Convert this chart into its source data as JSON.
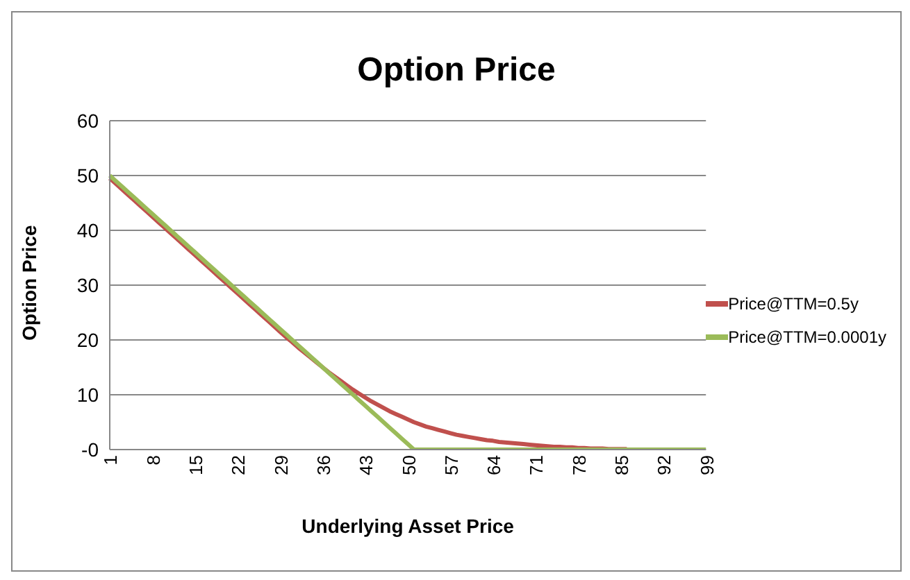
{
  "chart_data": {
    "type": "line",
    "title": "Option Price",
    "xlabel": "Underlying Asset Price",
    "ylabel": "Option Price",
    "categories": [
      "1",
      null,
      null,
      null,
      null,
      null,
      null,
      "8",
      null,
      null,
      null,
      null,
      null,
      null,
      "15",
      null,
      null,
      null,
      null,
      null,
      null,
      "22",
      null,
      null,
      null,
      null,
      null,
      null,
      "29",
      null,
      null,
      null,
      null,
      null,
      null,
      "36",
      null,
      null,
      null,
      null,
      null,
      null,
      "43",
      null,
      null,
      null,
      null,
      null,
      null,
      "50",
      null,
      null,
      null,
      null,
      null,
      null,
      "57",
      null,
      null,
      null,
      null,
      null,
      null,
      "64",
      null,
      null,
      null,
      null,
      null,
      null,
      "71",
      null,
      null,
      null,
      null,
      null,
      null,
      "78",
      null,
      null,
      null,
      null,
      null,
      null,
      "85",
      null,
      null,
      null,
      null,
      null,
      null,
      "92",
      null,
      null,
      null,
      null,
      null,
      null,
      "99"
    ],
    "series": [
      {
        "name": "Price@TTM=0.5y",
        "color": "#c0504d",
        "values": [
          49.5,
          48.5,
          47.5,
          46.5,
          45.5,
          44.5,
          43.5,
          42.5,
          41.5,
          40.5,
          39.5,
          38.5,
          37.5,
          36.5,
          35.5,
          34.5,
          33.5,
          32.5,
          31.5,
          30.5,
          29.5,
          28.5,
          27.5,
          26.5,
          25.5,
          24.5,
          23.5,
          22.5,
          21.5,
          20.5,
          19.6,
          18.6,
          17.7,
          16.8,
          15.9,
          15.0,
          14.1,
          13.3,
          12.5,
          11.7,
          10.9,
          10.2,
          9.5,
          8.8,
          8.2,
          7.6,
          7.0,
          6.5,
          6.0,
          5.5,
          5.0,
          4.6,
          4.2,
          3.9,
          3.6,
          3.3,
          3.0,
          2.7,
          2.5,
          2.3,
          2.1,
          1.9,
          1.7,
          1.6,
          1.4,
          1.3,
          1.2,
          1.1,
          1.0,
          0.9,
          0.8,
          0.7,
          0.6,
          0.5,
          0.5,
          0.4,
          0.4,
          0.3,
          0.3,
          0.2,
          0.2,
          0.2,
          0.1,
          0.1,
          0.1,
          0.1,
          null,
          null,
          null,
          null,
          null,
          null,
          null,
          null,
          null,
          null,
          null,
          null,
          null
        ]
      },
      {
        "name": "Price@TTM=0.0001y",
        "color": "#9bbb59",
        "values": [
          50,
          49,
          48,
          47,
          46,
          45,
          44,
          43,
          42,
          41,
          40,
          39,
          38,
          37,
          36,
          35,
          34,
          33,
          32,
          31,
          30,
          29,
          28,
          27,
          26,
          25,
          24,
          23,
          22,
          21,
          20,
          19,
          18,
          17,
          16,
          15,
          14,
          13,
          12,
          11,
          10,
          9,
          8,
          7,
          6,
          5,
          4,
          3,
          2,
          1,
          0,
          0,
          0,
          0,
          0,
          0,
          0,
          0,
          0,
          0,
          0,
          0,
          0,
          0,
          0,
          0,
          0,
          0,
          0,
          0,
          0,
          0,
          0,
          0,
          0,
          0,
          0,
          0,
          0,
          0,
          0,
          0,
          0,
          0,
          0,
          0,
          0,
          0,
          0,
          0,
          0,
          0,
          0,
          0,
          0,
          0,
          0,
          0,
          0
        ]
      }
    ],
    "ylim": [
      0,
      60
    ],
    "yticks": [
      {
        "value": 0,
        "label": "-0"
      },
      10,
      20,
      30,
      40,
      50,
      60
    ],
    "grid": "y",
    "legend": "right",
    "marker": "none",
    "line_style": "solid"
  }
}
